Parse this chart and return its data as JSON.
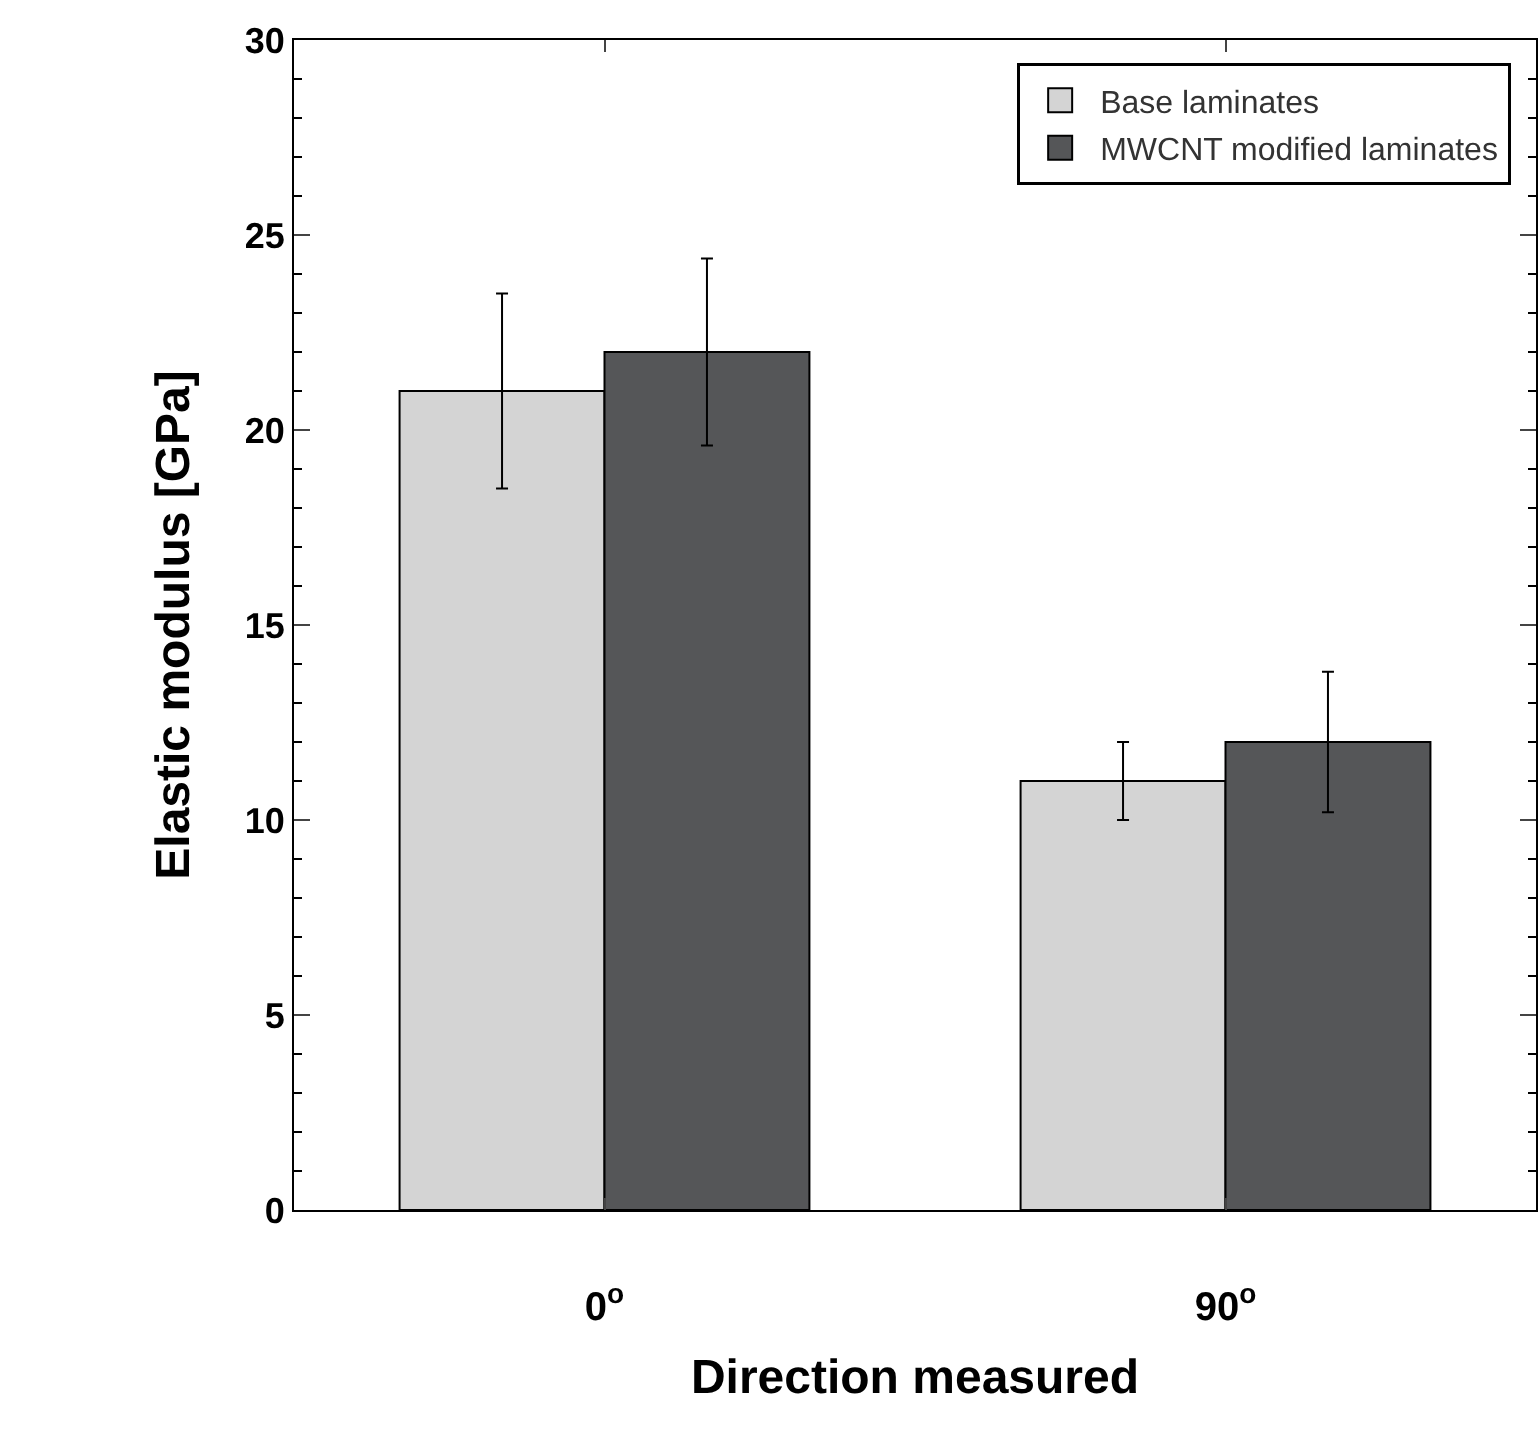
{
  "chart_data": {
    "type": "bar",
    "xlabel": "Direction measured",
    "ylabel": "Elastic modulus [GPa]",
    "categories": [
      "0$^{o}$",
      "90$^{o}$"
    ],
    "series": [
      {
        "name": "Base laminates",
        "color": "#d4d4d4",
        "values": [
          21,
          11
        ],
        "errors": [
          2.5,
          1
        ]
      },
      {
        "name": "MWCNT modified laminates",
        "color": "#555658",
        "values": [
          22,
          12
        ],
        "errors": [
          2.4,
          1.8
        ]
      }
    ],
    "ylim": [
      0,
      30
    ],
    "yticks": [
      0,
      5,
      10,
      15,
      20,
      25,
      30
    ],
    "legend": "top right"
  }
}
